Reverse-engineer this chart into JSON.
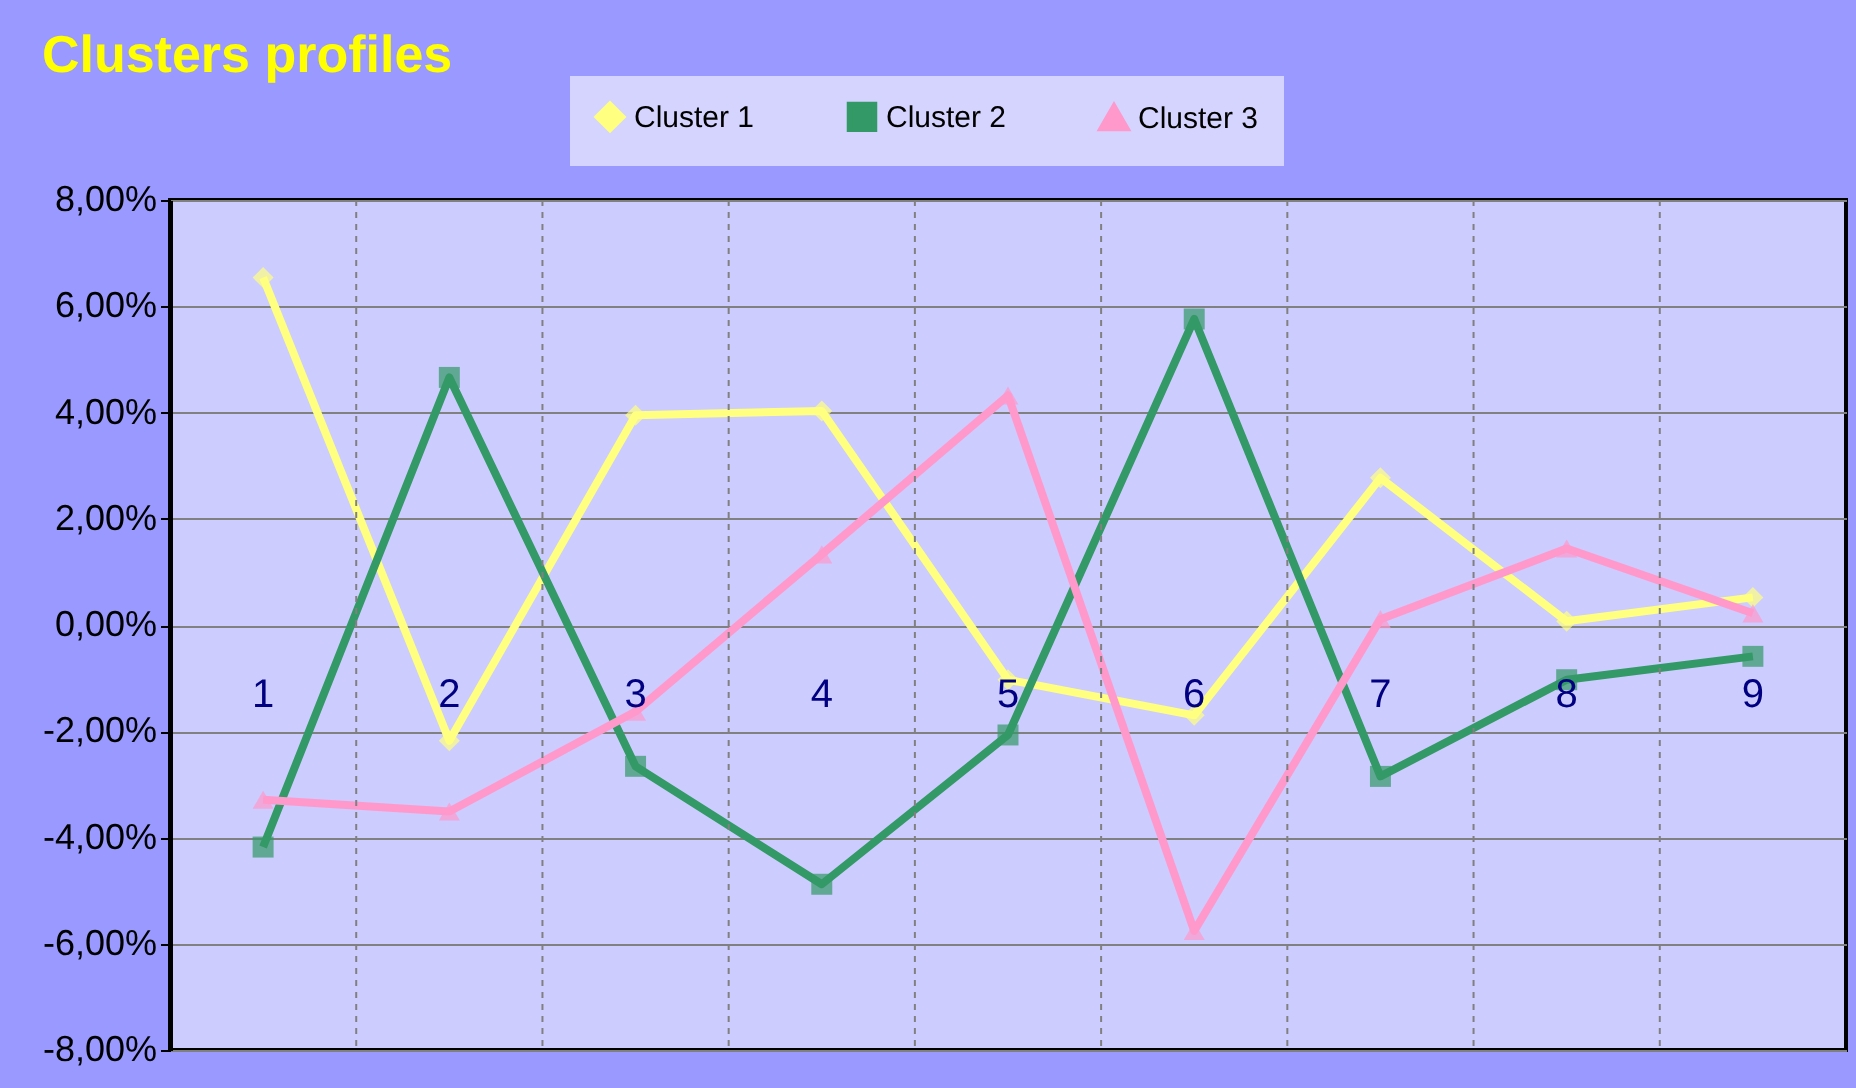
{
  "chart_data": {
    "type": "line",
    "title": "Clusters profiles",
    "categories": [
      "1",
      "2",
      "3",
      "4",
      "5",
      "6",
      "7",
      "8",
      "9"
    ],
    "series": [
      {
        "name": "Cluster 1",
        "color": "#ffff80",
        "marker": "diamond",
        "values": [
          6.54,
          -2.18,
          3.95,
          4.03,
          -1.03,
          -1.7,
          2.77,
          0.07,
          0.52
        ]
      },
      {
        "name": "Cluster 2",
        "color": "#339966",
        "marker": "square",
        "values": [
          -4.18,
          4.66,
          -2.66,
          -4.88,
          -2.07,
          5.76,
          -2.85,
          -1.03,
          -0.59
        ]
      },
      {
        "name": "Cluster 3",
        "color": "#ff99cc",
        "marker": "triangle",
        "values": [
          -3.29,
          -3.51,
          -1.63,
          1.33,
          4.32,
          -5.76,
          0.11,
          1.44,
          0.22
        ]
      }
    ],
    "ylim": [
      -8,
      8
    ],
    "yticks": [
      {
        "value": -8,
        "label": "-8,00%"
      },
      {
        "value": -6,
        "label": "-6,00%"
      },
      {
        "value": -4,
        "label": "-4,00%"
      },
      {
        "value": -2,
        "label": "-2,00%"
      },
      {
        "value": 0,
        "label": "0,00%"
      },
      {
        "value": 2,
        "label": "2,00%"
      },
      {
        "value": 4,
        "label": "4,00%"
      },
      {
        "value": 6,
        "label": "6,00%"
      },
      {
        "value": 8,
        "label": "8,00%"
      }
    ],
    "grid": true,
    "legend": "top",
    "line_style": "solid"
  }
}
